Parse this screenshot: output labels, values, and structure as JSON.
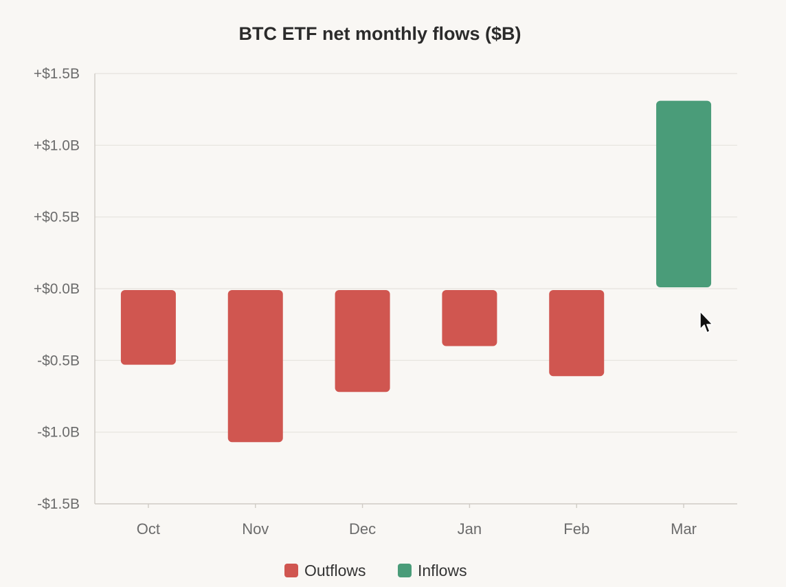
{
  "chart_data": {
    "type": "bar",
    "title": "BTC ETF net monthly flows ($B)",
    "xlabel": "",
    "ylabel": "",
    "categories": [
      "Oct",
      "Nov",
      "Dec",
      "Jan",
      "Feb",
      "Mar"
    ],
    "values": [
      -0.53,
      -1.07,
      -0.72,
      -0.4,
      -0.61,
      1.31
    ],
    "ylim": [
      -1.5,
      1.5
    ],
    "y_ticks": [
      1.5,
      1.0,
      0.5,
      0.0,
      -0.5,
      -1.0,
      -1.5
    ],
    "y_tick_labels": [
      "+$1.5B",
      "+$1.0B",
      "+$0.5B",
      "+$0.0B",
      "-$0.5B",
      "-$1.0B",
      "-$1.5B"
    ],
    "grid": true,
    "legend_position": "bottom-center",
    "legend": [
      {
        "name": "Outflows",
        "color": "#d05650"
      },
      {
        "name": "Inflows",
        "color": "#4a9c79"
      }
    ],
    "colors": {
      "negative": "#d05650",
      "positive": "#4a9c79"
    }
  }
}
